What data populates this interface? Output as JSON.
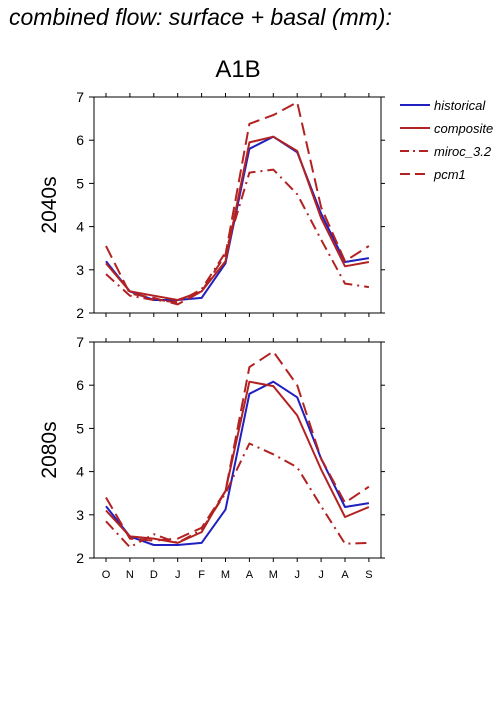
{
  "title": "combined flow: surface + basal (mm):",
  "scenario": "A1B",
  "legend": [
    {
      "name": "historical",
      "color": "#2020c0",
      "dash": "solid"
    },
    {
      "name": "composite",
      "color": "#b22222",
      "dash": "solid"
    },
    {
      "name": "miroc_3.2",
      "color": "#b22222",
      "dash": "dashdot"
    },
    {
      "name": "pcm1",
      "color": "#b22222",
      "dash": "dash"
    }
  ],
  "chart_data": [
    {
      "type": "line",
      "panel_label": "2040s",
      "categories": [
        "O",
        "N",
        "D",
        "J",
        "F",
        "M",
        "A",
        "M",
        "J",
        "J",
        "A",
        "S"
      ],
      "ylim": [
        2,
        7
      ],
      "yticks": [
        2,
        3,
        4,
        5,
        6,
        7
      ],
      "series": [
        {
          "name": "historical",
          "values": [
            3.2,
            2.5,
            2.3,
            2.3,
            2.35,
            3.15,
            5.8,
            6.08,
            5.72,
            4.3,
            3.18,
            3.27
          ]
        },
        {
          "name": "composite",
          "values": [
            3.15,
            2.5,
            2.4,
            2.3,
            2.5,
            3.2,
            5.95,
            6.08,
            5.75,
            4.2,
            3.08,
            3.18
          ]
        },
        {
          "name": "miroc_3.2",
          "values": [
            2.9,
            2.4,
            2.3,
            2.25,
            2.55,
            3.4,
            5.25,
            5.32,
            4.75,
            3.7,
            2.68,
            2.6
          ]
        },
        {
          "name": "pcm1",
          "values": [
            3.55,
            2.45,
            2.35,
            2.2,
            2.5,
            3.35,
            6.38,
            6.58,
            6.88,
            4.45,
            3.2,
            3.55
          ]
        }
      ]
    },
    {
      "type": "line",
      "panel_label": "2080s",
      "categories": [
        "O",
        "N",
        "D",
        "J",
        "F",
        "M",
        "A",
        "M",
        "J",
        "J",
        "A",
        "S"
      ],
      "ylim": [
        2,
        7
      ],
      "yticks": [
        2,
        3,
        4,
        5,
        6,
        7
      ],
      "series": [
        {
          "name": "historical",
          "values": [
            3.2,
            2.5,
            2.3,
            2.3,
            2.35,
            3.12,
            5.8,
            6.08,
            5.72,
            4.3,
            3.18,
            3.27
          ]
        },
        {
          "name": "composite",
          "values": [
            3.1,
            2.5,
            2.45,
            2.35,
            2.6,
            3.55,
            6.08,
            5.98,
            5.3,
            4.05,
            2.95,
            3.18
          ]
        },
        {
          "name": "miroc_3.2",
          "values": [
            2.85,
            2.25,
            2.55,
            2.35,
            2.65,
            3.5,
            4.65,
            4.4,
            4.1,
            3.2,
            2.33,
            2.35
          ]
        },
        {
          "name": "pcm1",
          "values": [
            3.4,
            2.45,
            2.4,
            2.45,
            2.7,
            3.55,
            6.42,
            6.78,
            6.0,
            4.3,
            3.28,
            3.65
          ]
        }
      ]
    }
  ]
}
